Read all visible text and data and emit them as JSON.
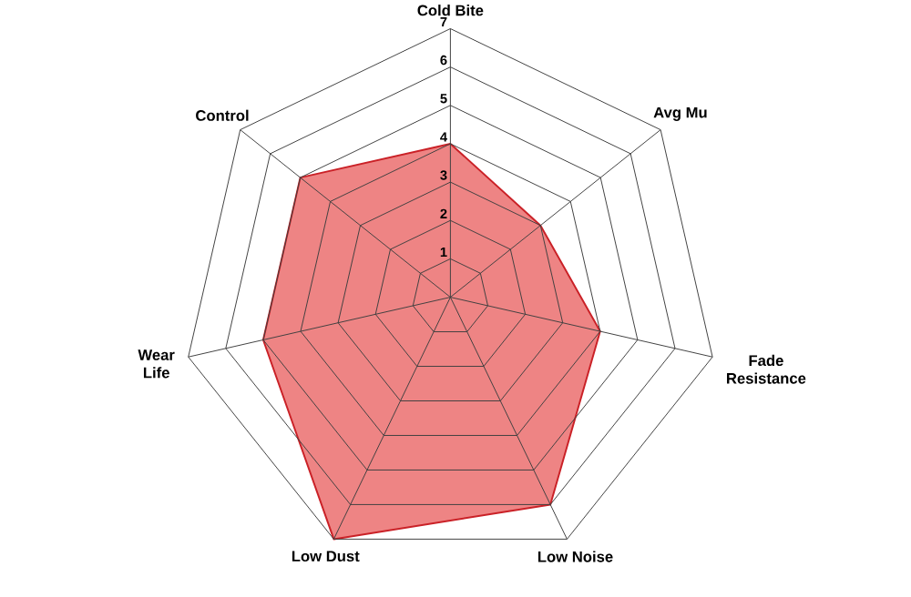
{
  "chart_data": {
    "type": "radar",
    "categories": [
      "Cold Bite",
      "Avg Mu",
      "Fade Resistance",
      "Low Noise",
      "Low Dust",
      "Wear Life",
      "Control"
    ],
    "series": [
      {
        "color": "#ee8484",
        "values": [
          4,
          3,
          4,
          6,
          7,
          5,
          5
        ]
      }
    ],
    "ylim": [
      0,
      7
    ],
    "yticks": [
      1,
      2,
      3,
      4,
      5,
      6,
      7
    ],
    "grid": true,
    "marker": "none",
    "line_style": "solid"
  }
}
